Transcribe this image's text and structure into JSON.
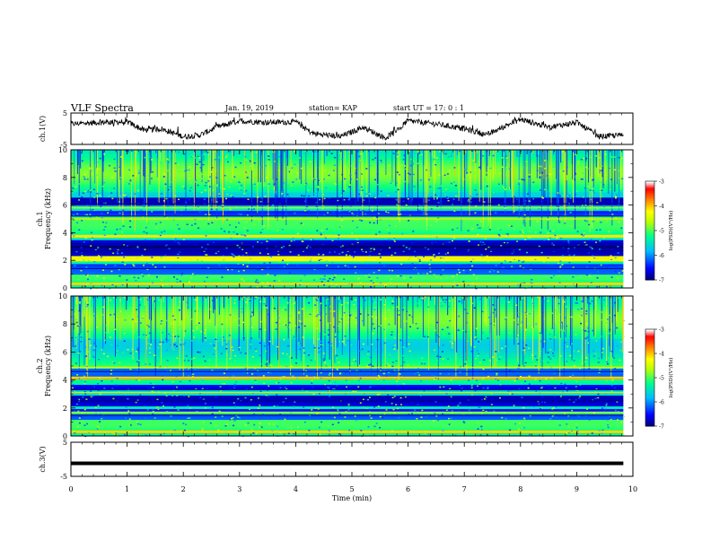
{
  "header": {
    "title": "VLF Spectra",
    "date": "Jan. 19, 2019",
    "station": "station= KAP",
    "start": "start  UT =   17: 0  : 1"
  },
  "colors": {
    "trace": "#000000",
    "colormap": [
      "#000080",
      "#0000ff",
      "#00c0ff",
      "#00ff80",
      "#c0ff00",
      "#ffff00",
      "#ff8000",
      "#ff0000",
      "#ffffff"
    ]
  },
  "chart_data": [
    {
      "type": "line",
      "name": "ch1-waveform",
      "ylabel": "ch.1(V)",
      "ylim": [
        -5,
        5
      ],
      "yticks": [
        "5",
        "-5"
      ],
      "xlim": [
        0,
        10
      ],
      "x_end": 9.83,
      "approx_trace_min": [
        {
          "t": 0.0,
          "v": 1.5
        },
        {
          "t": 0.5,
          "v": 2.0
        },
        {
          "t": 1.0,
          "v": 2.2
        },
        {
          "t": 1.3,
          "v": -0.5
        },
        {
          "t": 1.6,
          "v": 0.0
        },
        {
          "t": 2.0,
          "v": -2.5
        },
        {
          "t": 2.3,
          "v": -2.0
        },
        {
          "t": 2.6,
          "v": 0.5
        },
        {
          "t": 3.0,
          "v": 2.5
        },
        {
          "t": 3.5,
          "v": 2.0
        },
        {
          "t": 4.0,
          "v": 2.2
        },
        {
          "t": 4.3,
          "v": -1.5
        },
        {
          "t": 4.8,
          "v": -2.5
        },
        {
          "t": 5.2,
          "v": 0.5
        },
        {
          "t": 5.6,
          "v": -3.0
        },
        {
          "t": 6.0,
          "v": 2.5
        },
        {
          "t": 6.5,
          "v": 1.5
        },
        {
          "t": 7.0,
          "v": 0.0
        },
        {
          "t": 7.4,
          "v": -2.0
        },
        {
          "t": 7.8,
          "v": 1.5
        },
        {
          "t": 8.0,
          "v": 3.0
        },
        {
          "t": 8.5,
          "v": 0.5
        },
        {
          "t": 9.0,
          "v": 2.0
        },
        {
          "t": 9.4,
          "v": -2.5
        },
        {
          "t": 9.83,
          "v": -2.0
        }
      ]
    },
    {
      "type": "heatmap",
      "name": "ch1-spectrogram",
      "ylabel": "ch.1\nFrequency  (kHz)",
      "ylim": [
        0,
        10
      ],
      "yticks": [
        "0",
        "2",
        "4",
        "6",
        "8",
        "10"
      ],
      "xlim": [
        0,
        10
      ],
      "x_end": 9.83,
      "colorbar": {
        "label": "log(PSD)(V²/Hz)",
        "range": [
          -7,
          -3
        ],
        "ticks": [
          "-3",
          "-4",
          "-5",
          "-6",
          "-7"
        ]
      },
      "dark_bands_khz": [
        1.4,
        2.7,
        3.2,
        5.2,
        6.1
      ],
      "bright_lines_khz": [
        0.3,
        2.1,
        3.7,
        5.0,
        5.8
      ]
    },
    {
      "type": "heatmap",
      "name": "ch2-spectrogram",
      "ylabel": "ch.2\nFrequency  (kHz)",
      "ylim": [
        0,
        10
      ],
      "yticks": [
        "0",
        "2",
        "4",
        "6",
        "8",
        "10"
      ],
      "xlim": [
        0,
        10
      ],
      "x_end": 9.83,
      "colorbar": {
        "label": "log(PSD)(V²/Hz)",
        "range": [
          -7,
          -3
        ],
        "ticks": [
          "-3",
          "-4",
          "-5",
          "-6",
          "-7"
        ]
      },
      "dark_bands_khz": [
        1.5,
        2.5,
        3.3,
        4.6
      ],
      "bright_lines_khz": [
        0.3,
        1.7,
        3.1,
        4.2,
        4.9
      ]
    },
    {
      "type": "line",
      "name": "ch3-waveform",
      "ylabel": "ch.3(V)",
      "ylim": [
        -5,
        5
      ],
      "yticks": [
        "5",
        "-5"
      ],
      "xlim": [
        0,
        10
      ],
      "x_end": 9.83,
      "flat_value": -1.2,
      "xlabel": "Time  (min)",
      "xticks": [
        "0",
        "1",
        "2",
        "3",
        "4",
        "5",
        "6",
        "7",
        "8",
        "9",
        "10"
      ]
    }
  ]
}
